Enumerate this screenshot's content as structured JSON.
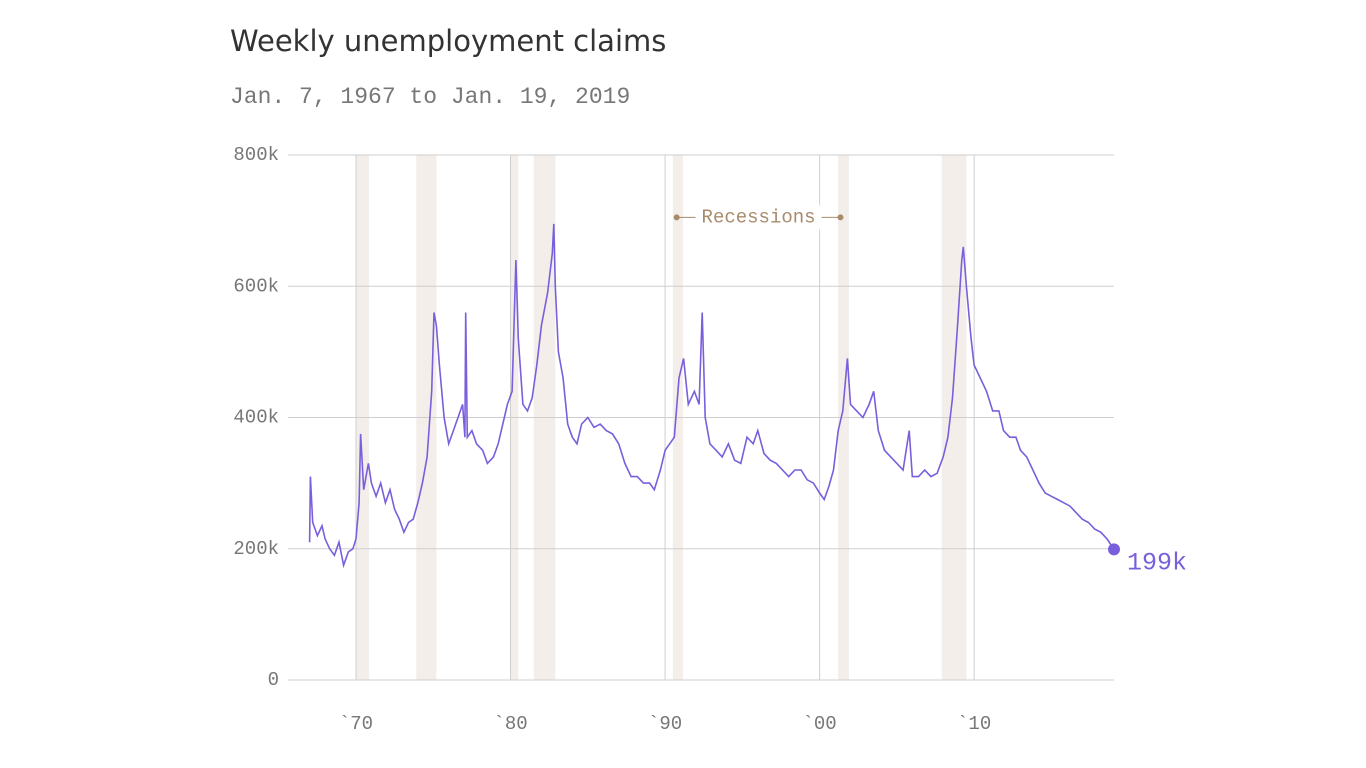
{
  "chart_data": {
    "type": "line",
    "title": "Weekly unemployment claims",
    "subtitle": "Jan. 7, 1967 to Jan. 19, 2019",
    "color": "#7a5fdc",
    "recession_color": "#f3eee9",
    "grid": true,
    "xlim": [
      1965.6,
      2019.05
    ],
    "ylim": [
      0,
      800000
    ],
    "xticks": [
      {
        "value": 1970,
        "label": "`70"
      },
      {
        "value": 1980,
        "label": "`80"
      },
      {
        "value": 1990,
        "label": "`90"
      },
      {
        "value": 2000,
        "label": "`00"
      },
      {
        "value": 2010,
        "label": "`10"
      }
    ],
    "yticks": [
      0,
      {
        "value": 200000,
        "label": "200k"
      },
      {
        "value": 400000,
        "label": "400k"
      },
      {
        "value": 600000,
        "label": "600k"
      },
      {
        "value": 800000,
        "label": "800k"
      }
    ],
    "recessions": [
      [
        1970.0,
        1970.85
      ],
      [
        1973.9,
        1975.2
      ],
      [
        1980.0,
        1980.5
      ],
      [
        1981.5,
        1982.9
      ],
      [
        1990.5,
        1991.15
      ],
      [
        2001.2,
        2001.9
      ],
      [
        2007.9,
        2009.5
      ]
    ],
    "annotation": {
      "text": "Recessions",
      "x": [
        1990.75,
        2001.35
      ],
      "y": 705000
    },
    "last_value_label": "199k",
    "x": [
      1967.0,
      1967.05,
      1967.2,
      1967.5,
      1967.8,
      1968.0,
      1968.3,
      1968.6,
      1968.9,
      1969.2,
      1969.5,
      1969.8,
      1970.0,
      1970.2,
      1970.3,
      1970.5,
      1970.8,
      1971.0,
      1971.3,
      1971.6,
      1971.9,
      1972.2,
      1972.5,
      1972.8,
      1973.1,
      1973.4,
      1973.7,
      1974.0,
      1974.3,
      1974.6,
      1974.9,
      1975.05,
      1975.2,
      1975.4,
      1975.7,
      1976.0,
      1976.3,
      1976.6,
      1976.9,
      1977.05,
      1977.1,
      1977.2,
      1977.5,
      1977.8,
      1978.2,
      1978.5,
      1978.9,
      1979.2,
      1979.5,
      1979.8,
      1980.1,
      1980.35,
      1980.5,
      1980.8,
      1981.1,
      1981.4,
      1981.7,
      1982.0,
      1982.4,
      1982.7,
      1982.8,
      1982.9,
      1983.1,
      1983.4,
      1983.7,
      1984.0,
      1984.3,
      1984.6,
      1985.0,
      1985.4,
      1985.8,
      1986.2,
      1986.6,
      1987.0,
      1987.4,
      1987.8,
      1988.2,
      1988.6,
      1989.0,
      1989.3,
      1989.7,
      1990.0,
      1990.3,
      1990.6,
      1990.9,
      1991.2,
      1991.5,
      1991.9,
      1992.2,
      1992.4,
      1992.6,
      1992.9,
      1993.3,
      1993.7,
      1994.1,
      1994.5,
      1994.9,
      1995.3,
      1995.7,
      1996.0,
      1996.4,
      1996.8,
      1997.2,
      1997.6,
      1998.0,
      1998.4,
      1998.8,
      1999.2,
      1999.6,
      2000.0,
      2000.3,
      2000.6,
      2000.9,
      2001.2,
      2001.5,
      2001.8,
      2002.0,
      2002.4,
      2002.8,
      2003.2,
      2003.5,
      2003.8,
      2004.2,
      2004.6,
      2005.0,
      2005.4,
      2005.8,
      2006.0,
      2006.4,
      2006.8,
      2007.2,
      2007.6,
      2008.0,
      2008.3,
      2008.6,
      2008.9,
      2009.2,
      2009.3,
      2009.5,
      2009.8,
      2010.0,
      2010.4,
      2010.8,
      2011.2,
      2011.6,
      2011.9,
      2012.3,
      2012.7,
      2013.0,
      2013.4,
      2013.8,
      2014.2,
      2014.6,
      2015.0,
      2015.4,
      2015.8,
      2016.2,
      2016.6,
      2017.0,
      2017.4,
      2017.8,
      2018.2,
      2018.6,
      2019.05
    ],
    "values": [
      210000,
      310000,
      240000,
      220000,
      235000,
      215000,
      200000,
      190000,
      210000,
      175000,
      195000,
      200000,
      215000,
      270000,
      375000,
      290000,
      330000,
      300000,
      280000,
      300000,
      270000,
      290000,
      260000,
      245000,
      225000,
      240000,
      245000,
      270000,
      300000,
      340000,
      440000,
      560000,
      540000,
      480000,
      400000,
      360000,
      380000,
      400000,
      420000,
      370000,
      560000,
      370000,
      380000,
      360000,
      350000,
      330000,
      340000,
      360000,
      390000,
      420000,
      440000,
      640000,
      520000,
      420000,
      410000,
      430000,
      480000,
      540000,
      590000,
      650000,
      695000,
      600000,
      500000,
      460000,
      390000,
      370000,
      360000,
      390000,
      400000,
      385000,
      390000,
      380000,
      375000,
      360000,
      330000,
      310000,
      310000,
      300000,
      300000,
      290000,
      320000,
      350000,
      360000,
      370000,
      460000,
      490000,
      420000,
      440000,
      420000,
      560000,
      400000,
      360000,
      350000,
      340000,
      360000,
      335000,
      330000,
      370000,
      360000,
      380000,
      345000,
      335000,
      330000,
      320000,
      310000,
      320000,
      320000,
      305000,
      300000,
      285000,
      275000,
      295000,
      320000,
      380000,
      410000,
      490000,
      420000,
      410000,
      400000,
      420000,
      440000,
      380000,
      350000,
      340000,
      330000,
      320000,
      380000,
      310000,
      310000,
      320000,
      310000,
      315000,
      340000,
      370000,
      430000,
      530000,
      640000,
      660000,
      600000,
      520000,
      480000,
      460000,
      440000,
      410000,
      410000,
      380000,
      370000,
      370000,
      350000,
      340000,
      320000,
      300000,
      285000,
      280000,
      275000,
      270000,
      265000,
      255000,
      245000,
      240000,
      230000,
      225000,
      215000,
      199000
    ]
  }
}
